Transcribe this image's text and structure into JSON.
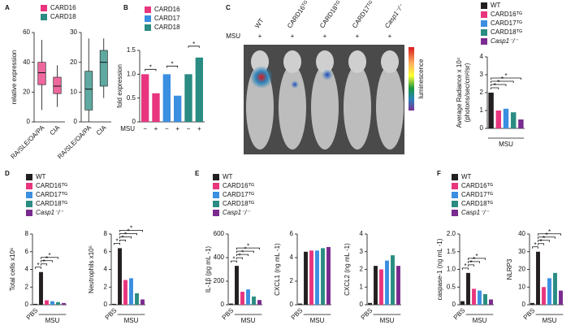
{
  "chart_data": [
    {
      "type": "box",
      "panel": "A",
      "ylabel": "relative expression",
      "categories": [
        "RA/SLE/OA/PA",
        "CIA"
      ],
      "boxes": [
        {
          "whislo": 8,
          "q1": 25,
          "med": 33,
          "q3": 40,
          "whishi": 55
        },
        {
          "whislo": 10,
          "q1": 19,
          "med": 24,
          "q3": 30,
          "whishi": 38
        }
      ],
      "colors": [
        "#e8357e",
        "#e8357e"
      ],
      "ylim": [
        0,
        60
      ],
      "yticks": [
        0,
        20,
        40,
        60
      ],
      "legend": [
        {
          "name": "CARD16",
          "color": "#e8357e"
        },
        {
          "name": "CARD18",
          "color": "#2a8c82"
        }
      ]
    },
    {
      "type": "box",
      "categories": [
        "RA/SLE/OA/PA",
        "CIA"
      ],
      "boxes": [
        {
          "whislo": 0,
          "q1": 4,
          "med": 11,
          "q3": 17,
          "whishi": 28
        },
        {
          "whislo": 8,
          "q1": 12,
          "med": 20,
          "q3": 24,
          "whishi": 28
        }
      ],
      "colors": [
        "#2a8c82",
        "#2a8c82"
      ],
      "ylim": [
        0,
        30
      ],
      "yticks": [
        0,
        10,
        20,
        30
      ]
    },
    {
      "type": "bar",
      "panel": "B",
      "ylabel": "fold expression",
      "categories": [
        "−",
        "+",
        "−",
        "+",
        "−",
        "+"
      ],
      "group_label": "MSU",
      "values": [
        1,
        0.6,
        1,
        0.55,
        1,
        1.35
      ],
      "colors": [
        "#e8357e",
        "#e8357e",
        "#3b8fe0",
        "#3b8fe0",
        "#2a8c82",
        "#2a8c82"
      ],
      "ylim": [
        0,
        1.5
      ],
      "yticks": [
        0,
        0.5,
        {
          "value": 1,
          "label": "1.0"
        },
        1.5
      ],
      "legend": [
        {
          "name": "CARD16",
          "color": "#e8357e"
        },
        {
          "name": "CARD17",
          "color": "#3b8fe0"
        },
        {
          "name": "CARD18",
          "color": "#2a8c82"
        }
      ],
      "sig": [
        {
          "from": 0,
          "to": 1,
          "label": "*"
        },
        {
          "from": 2,
          "to": 3,
          "label": "*"
        },
        {
          "from": 4,
          "to": 5,
          "label": "*"
        }
      ]
    },
    {
      "type": "image",
      "panel": "C",
      "columns": [
        "WT",
        "CARD16ᵀᴳ",
        "CARD18ᵀᴳ",
        "CARD17ᵀᴳ",
        "Casp1⁻/⁻"
      ],
      "row_label": "MSU",
      "treatments": [
        "+",
        "+",
        "+",
        "+",
        "+"
      ],
      "colorbar_label": "luminescence"
    },
    {
      "type": "bar",
      "ylabel": [
        "Average Radiance x 10⁴",
        "(photons/sec/cm²/sr)"
      ],
      "categories": [
        null,
        null,
        null,
        null,
        null
      ],
      "group_label": "MSU",
      "values": [
        2.0,
        1.0,
        1.1,
        0.9,
        0.5
      ],
      "colors": [
        "#231f20",
        "#e8357e",
        "#3b8fe0",
        "#2a8c82",
        "#7a2b8f"
      ],
      "ylim": [
        0,
        4
      ],
      "yticks": [
        0,
        1,
        2,
        3,
        4
      ],
      "legend": [
        {
          "name": "WT",
          "color": "#231f20"
        },
        {
          "name": "CARD16ᵀᴳ",
          "color": "#e8357e"
        },
        {
          "name": "CARD17ᵀᴳ",
          "color": "#3b8fe0"
        },
        {
          "name": "CARD18ᵀᴳ",
          "color": "#2a8c82"
        },
        {
          "name": "Casp1⁻/⁻",
          "color": "#7a2b8f",
          "style": "italic"
        }
      ],
      "sig": [
        {
          "from": 0,
          "to": 1,
          "label": "*"
        },
        {
          "from": 0,
          "to": 2,
          "label": "*"
        },
        {
          "from": 0,
          "to": 3,
          "label": "*"
        },
        {
          "from": 0,
          "to": 4,
          "label": "*"
        }
      ]
    },
    {
      "type": "bar",
      "panel": "D",
      "ylabel": "Total cells x10⁶",
      "categories": [
        "PBS",
        null,
        null,
        null,
        null,
        null
      ],
      "group_label": "MSU",
      "values": [
        0.1,
        3.7,
        0.5,
        0.4,
        0.3,
        0.2
      ],
      "colors": [
        "#231f20",
        "#231f20",
        "#e8357e",
        "#3b8fe0",
        "#2a8c82",
        "#7a2b8f"
      ],
      "ylim": [
        0,
        8
      ],
      "yticks": [
        0,
        2,
        4,
        6,
        8
      ],
      "legend": [
        {
          "name": "WT",
          "color": "#231f20"
        },
        {
          "name": "CARD16ᵀᴳ",
          "color": "#e8357e"
        },
        {
          "name": "CARD17ᵀᴳ",
          "color": "#3b8fe0"
        },
        {
          "name": "CARD18ᵀᴳ",
          "color": "#2a8c82"
        },
        {
          "name": "Casp1⁻/⁻",
          "color": "#7a2b8f",
          "style": "italic"
        }
      ],
      "sig": [
        {
          "from": 0,
          "to": 1,
          "label": "*"
        },
        {
          "from": 1,
          "to": 2,
          "label": "*"
        },
        {
          "from": 1,
          "to": 3,
          "label": "*"
        },
        {
          "from": 1,
          "to": 4,
          "label": "*"
        }
      ]
    },
    {
      "type": "bar",
      "ylabel": "Neutrophils x10⁵",
      "categories": [
        "PBS",
        null,
        null,
        null,
        null,
        null
      ],
      "group_label": "MSU",
      "values": [
        0.1,
        6.4,
        2.8,
        3.0,
        1.3,
        0.6
      ],
      "colors": [
        "#231f20",
        "#231f20",
        "#e8357e",
        "#3b8fe0",
        "#2a8c82",
        "#7a2b8f"
      ],
      "ylim": [
        0,
        8
      ],
      "yticks": [
        0,
        2,
        4,
        6,
        8
      ],
      "sig": [
        {
          "from": 0,
          "to": 1,
          "label": "*"
        },
        {
          "from": 1,
          "to": 2,
          "label": "*"
        },
        {
          "from": 1,
          "to": 3,
          "label": "*"
        },
        {
          "from": 1,
          "to": 4,
          "label": "*"
        },
        {
          "from": 1,
          "to": 5,
          "label": "*"
        }
      ]
    },
    {
      "type": "bar",
      "panel": "E",
      "ylabel": "IL-1β (pg mL -1)",
      "categories": [
        "PBS",
        null,
        null,
        null,
        null,
        null
      ],
      "group_label": "MSU",
      "values": [
        10,
        330,
        110,
        130,
        70,
        40
      ],
      "colors": [
        "#231f20",
        "#231f20",
        "#e8357e",
        "#3b8fe0",
        "#2a8c82",
        "#7a2b8f"
      ],
      "ylim": [
        0,
        600
      ],
      "yticks": [
        0,
        200,
        400,
        600
      ],
      "legend": [
        {
          "name": "WT",
          "color": "#231f20"
        },
        {
          "name": "CARD16ᵀᴳ",
          "color": "#e8357e"
        },
        {
          "name": "CARD17ᵀᴳ",
          "color": "#3b8fe0"
        },
        {
          "name": "CARD18ᵀᴳ",
          "color": "#2a8c82"
        },
        {
          "name": "Casp1⁻/⁻",
          "color": "#7a2b8f",
          "style": "italic"
        }
      ],
      "sig": [
        {
          "from": 0,
          "to": 1,
          "label": "*"
        },
        {
          "from": 1,
          "to": 2,
          "label": "*"
        },
        {
          "from": 1,
          "to": 3,
          "label": "*"
        },
        {
          "from": 1,
          "to": 4,
          "label": "*"
        },
        {
          "from": 1,
          "to": 5,
          "label": "*"
        }
      ]
    },
    {
      "type": "bar",
      "ylabel": "CXCL1 (ng mL -1)",
      "categories": [
        "PBS",
        null,
        null,
        null,
        null,
        null
      ],
      "group_label": "MSU",
      "values": [
        0.1,
        4.5,
        4.6,
        4.6,
        4.8,
        4.9
      ],
      "colors": [
        "#231f20",
        "#231f20",
        "#e8357e",
        "#3b8fe0",
        "#2a8c82",
        "#7a2b8f"
      ],
      "ylim": [
        0,
        6
      ],
      "yticks": [
        0,
        2,
        4,
        6
      ]
    },
    {
      "type": "bar",
      "ylabel": "CXCL2 (ng mL -1)",
      "categories": [
        "PBS",
        null,
        null,
        null,
        null,
        null
      ],
      "group_label": "MSU",
      "values": [
        0.1,
        2.2,
        2.0,
        2.5,
        2.8,
        2.2
      ],
      "colors": [
        "#231f20",
        "#231f20",
        "#e8357e",
        "#3b8fe0",
        "#2a8c82",
        "#7a2b8f"
      ],
      "ylim": [
        0,
        4
      ],
      "yticks": [
        0,
        1,
        2,
        3,
        4
      ]
    },
    {
      "type": "bar",
      "panel": "F",
      "ylabel": "caspase-1 (ng mL -1)",
      "categories": [
        "PBS",
        null,
        null,
        null,
        null,
        null
      ],
      "group_label": "MSU",
      "values": [
        0.1,
        0.9,
        0.45,
        0.4,
        0.3,
        0.15
      ],
      "colors": [
        "#231f20",
        "#231f20",
        "#e8357e",
        "#3b8fe0",
        "#2a8c82",
        "#7a2b8f"
      ],
      "ylim": [
        0,
        2
      ],
      "yticks": [
        0,
        0.5,
        {
          "value": 1,
          "label": "1.0"
        },
        1.5,
        {
          "value": 2,
          "label": "2.0"
        }
      ],
      "legend": [
        {
          "name": "WT",
          "color": "#231f20"
        },
        {
          "name": "CARD16ᵀᴳ",
          "color": "#e8357e"
        },
        {
          "name": "CARD17ᵀᴳ",
          "color": "#3b8fe0"
        },
        {
          "name": "CARD18ᵀᴳ",
          "color": "#2a8c82"
        },
        {
          "name": "Casp1⁻/⁻",
          "color": "#7a2b8f",
          "style": "italic"
        }
      ],
      "sig": [
        {
          "from": 0,
          "to": 1,
          "label": "*"
        },
        {
          "from": 1,
          "to": 2,
          "label": "*"
        },
        {
          "from": 1,
          "to": 3,
          "label": "*"
        },
        {
          "from": 1,
          "to": 4,
          "label": "*"
        }
      ]
    },
    {
      "type": "bar",
      "ylabel": "NLRP3",
      "categories": [
        "PBS",
        null,
        null,
        null,
        null,
        null
      ],
      "group_label": "MSU",
      "values": [
        1,
        30,
        10,
        15,
        18,
        8
      ],
      "colors": [
        "#231f20",
        "#231f20",
        "#e8357e",
        "#3b8fe0",
        "#2a8c82",
        "#7a2b8f"
      ],
      "ylim": [
        0,
        40
      ],
      "yticks": [
        0,
        10,
        20,
        30,
        40
      ],
      "sig": [
        {
          "from": 0,
          "to": 1,
          "label": "*"
        },
        {
          "from": 1,
          "to": 2,
          "label": "*"
        },
        {
          "from": 1,
          "to": 3,
          "label": "*"
        },
        {
          "from": 1,
          "to": 4,
          "label": "*"
        },
        {
          "from": 1,
          "to": 5,
          "label": "*"
        }
      ]
    }
  ]
}
